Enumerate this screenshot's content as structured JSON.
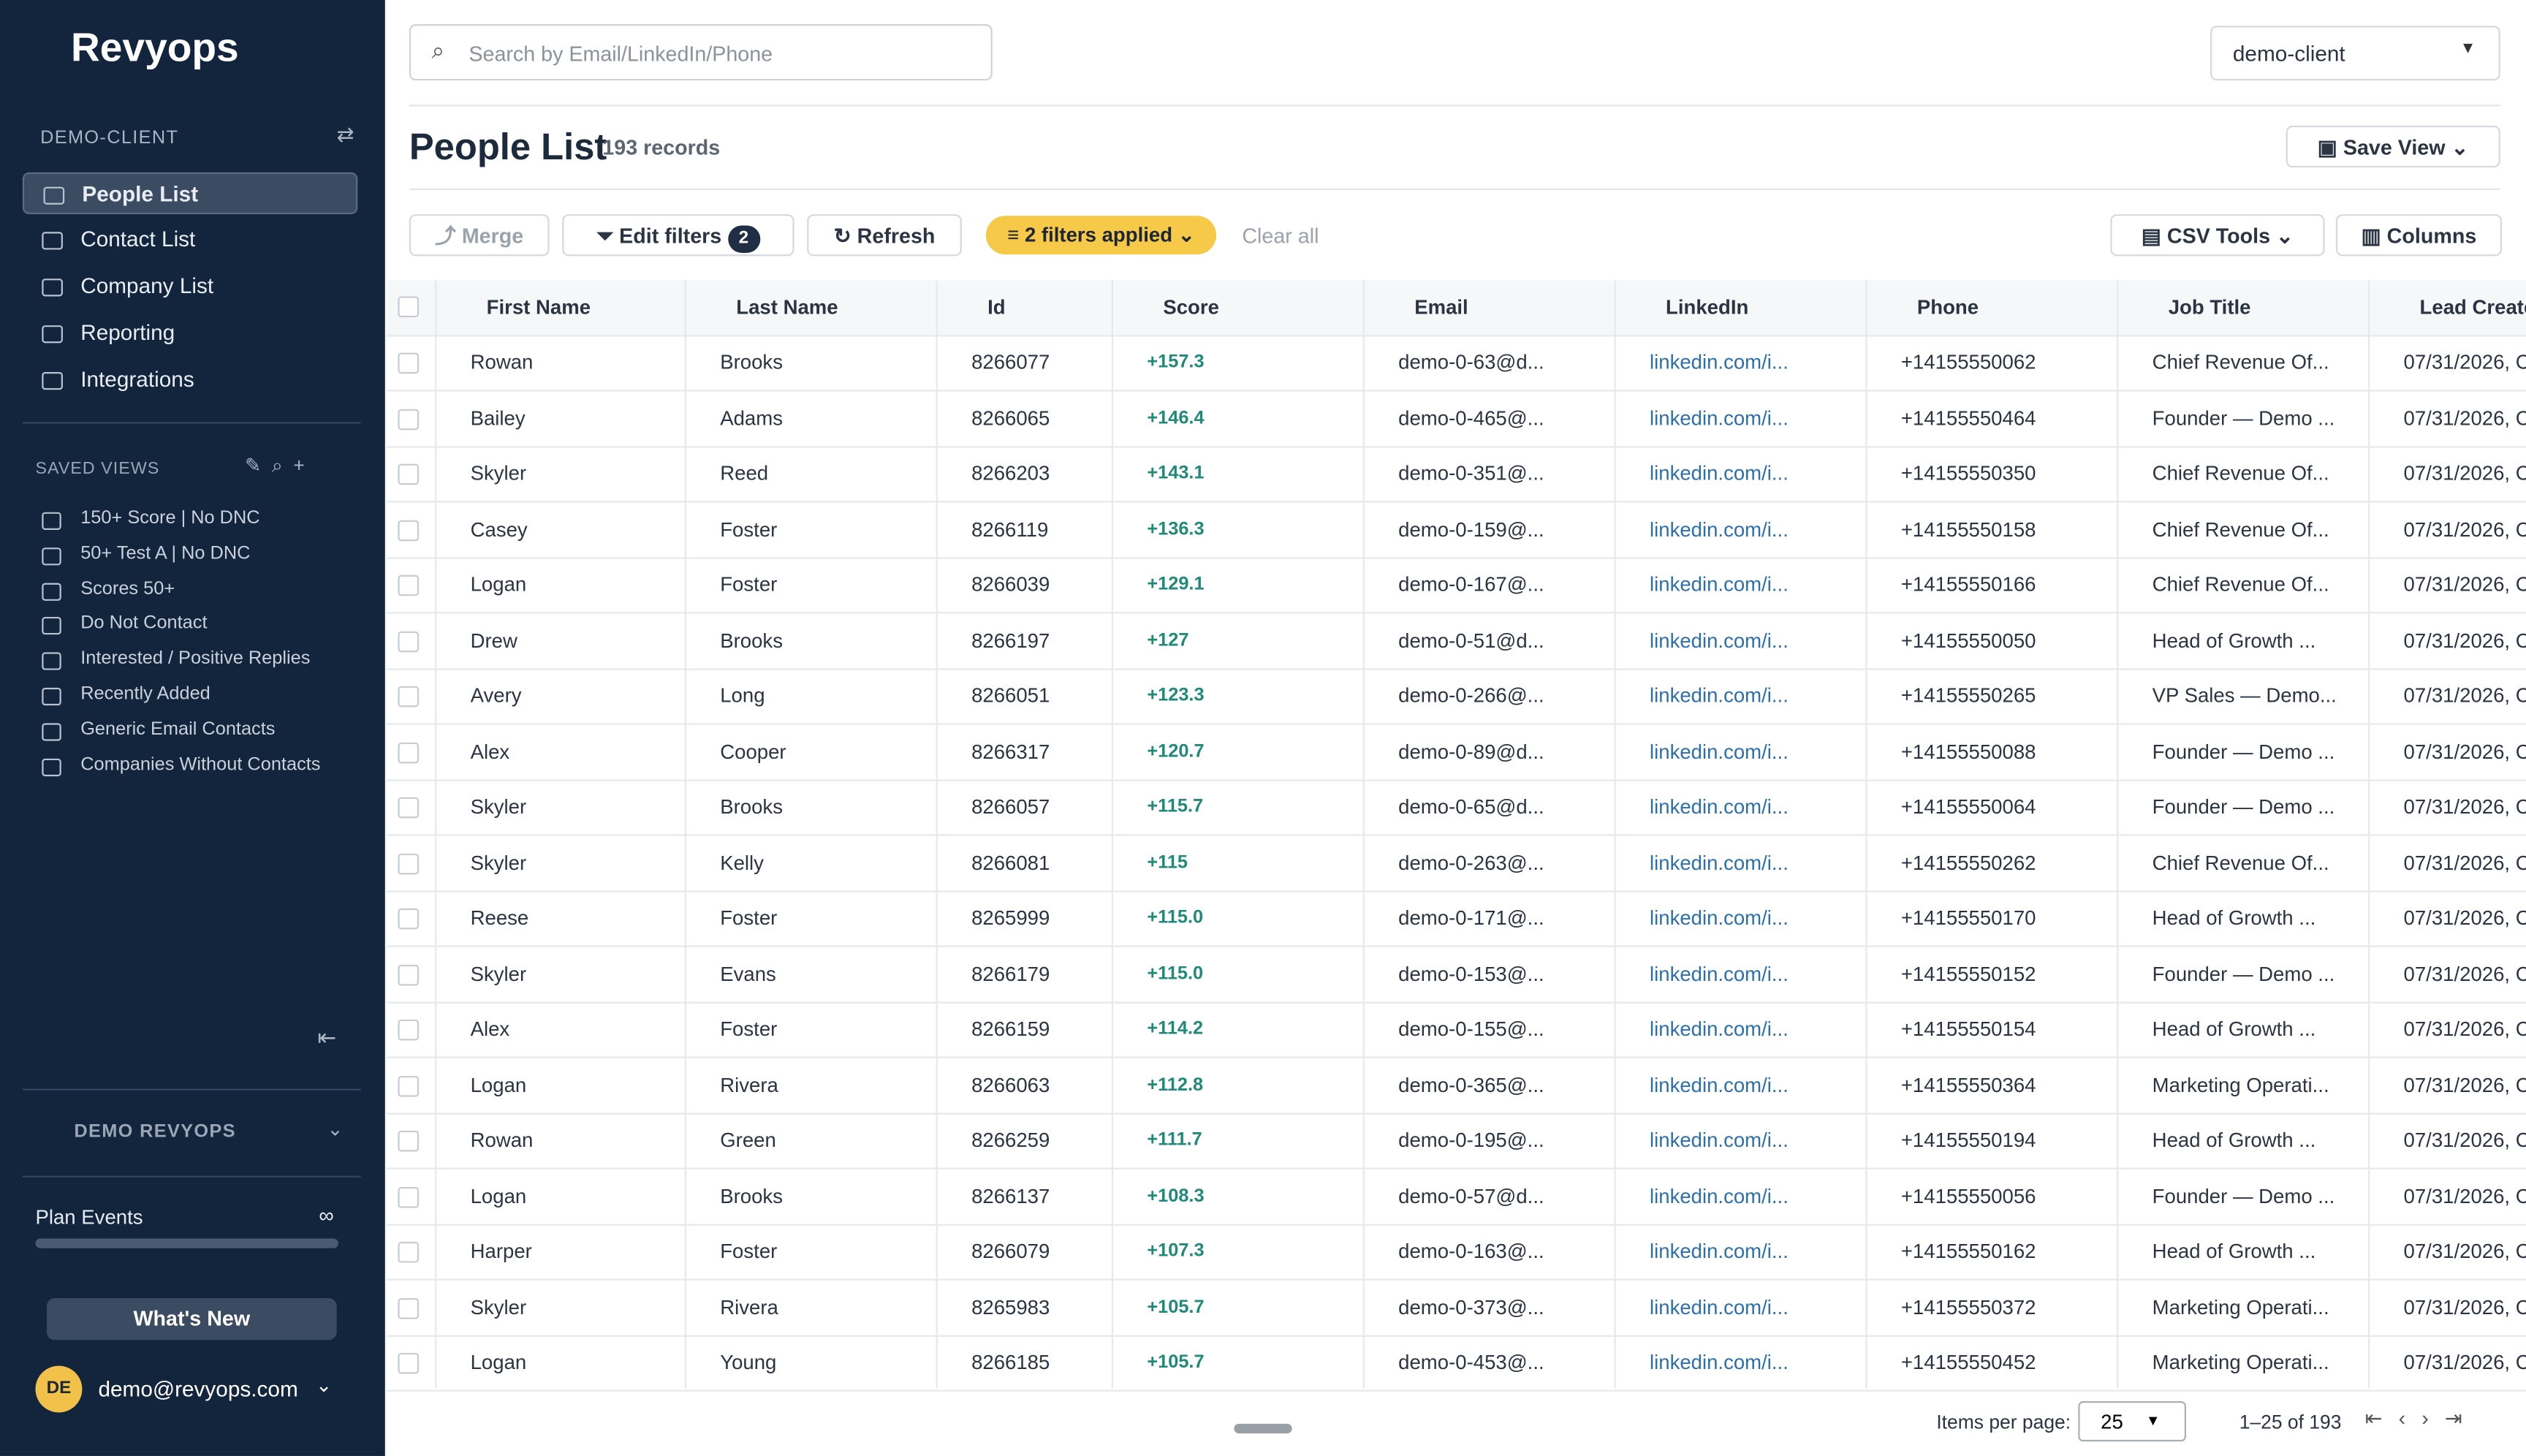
{
  "sidebar": {
    "logo": "Revyops",
    "workspace": "DEMO-CLIENT",
    "nav": [
      "People List",
      "Contact List",
      "Company List",
      "Reporting",
      "Integrations"
    ],
    "saved_views_title": "SAVED VIEWS",
    "saved_views": [
      "150+ Score | No DNC",
      "50+ Test A | No DNC",
      "Scores 50+",
      "Do Not Contact",
      "Interested / Positive Replies",
      "Recently Added",
      "Generic Email Contacts",
      "Companies Without Contacts"
    ],
    "org": "DEMO REVYOPS",
    "plan": "Plan Events",
    "plan_value": "∞",
    "whats_new": "What's New",
    "user_initials": "DE",
    "user_email": "demo@revyops.com"
  },
  "header": {
    "search_placeholder": "Search by Email/LinkedIn/Phone",
    "client": "demo-client",
    "title": "People List",
    "records": "193 records",
    "save_view": "Save View"
  },
  "toolbar": {
    "merge": "Merge",
    "edit_filters": "Edit filters",
    "filter_count": "2",
    "refresh": "Refresh",
    "filters_applied": "2 filters applied",
    "clear_all": "Clear all",
    "csv_tools": "CSV Tools",
    "columns": "Columns"
  },
  "table": {
    "columns": [
      "First Name",
      "Last Name",
      "Id",
      "Score",
      "Email",
      "LinkedIn",
      "Phone",
      "Job Title",
      "Lead Create"
    ],
    "rows": [
      [
        "Rowan",
        "Brooks",
        "8266077",
        "+157.3",
        "demo-0-63@d...",
        "linkedin.com/i...",
        "+14155550062",
        "Chief Revenue Of...",
        "07/31/2026, C"
      ],
      [
        "Bailey",
        "Adams",
        "8266065",
        "+146.4",
        "demo-0-465@...",
        "linkedin.com/i...",
        "+14155550464",
        "Founder — Demo ...",
        "07/31/2026, C"
      ],
      [
        "Skyler",
        "Reed",
        "8266203",
        "+143.1",
        "demo-0-351@...",
        "linkedin.com/i...",
        "+14155550350",
        "Chief Revenue Of...",
        "07/31/2026, C"
      ],
      [
        "Casey",
        "Foster",
        "8266119",
        "+136.3",
        "demo-0-159@...",
        "linkedin.com/i...",
        "+14155550158",
        "Chief Revenue Of...",
        "07/31/2026, C"
      ],
      [
        "Logan",
        "Foster",
        "8266039",
        "+129.1",
        "demo-0-167@...",
        "linkedin.com/i...",
        "+14155550166",
        "Chief Revenue Of...",
        "07/31/2026, C"
      ],
      [
        "Drew",
        "Brooks",
        "8266197",
        "+127",
        "demo-0-51@d...",
        "linkedin.com/i...",
        "+14155550050",
        "Head of Growth ...",
        "07/31/2026, C"
      ],
      [
        "Avery",
        "Long",
        "8266051",
        "+123.3",
        "demo-0-266@...",
        "linkedin.com/i...",
        "+14155550265",
        "VP Sales — Demo...",
        "07/31/2026, C"
      ],
      [
        "Alex",
        "Cooper",
        "8266317",
        "+120.7",
        "demo-0-89@d...",
        "linkedin.com/i...",
        "+14155550088",
        "Founder — Demo ...",
        "07/31/2026, C"
      ],
      [
        "Skyler",
        "Brooks",
        "8266057",
        "+115.7",
        "demo-0-65@d...",
        "linkedin.com/i...",
        "+14155550064",
        "Founder — Demo ...",
        "07/31/2026, C"
      ],
      [
        "Skyler",
        "Kelly",
        "8266081",
        "+115",
        "demo-0-263@...",
        "linkedin.com/i...",
        "+14155550262",
        "Chief Revenue Of...",
        "07/31/2026, C"
      ],
      [
        "Reese",
        "Foster",
        "8265999",
        "+115.0",
        "demo-0-171@...",
        "linkedin.com/i...",
        "+14155550170",
        "Head of Growth ...",
        "07/31/2026, C"
      ],
      [
        "Skyler",
        "Evans",
        "8266179",
        "+115.0",
        "demo-0-153@...",
        "linkedin.com/i...",
        "+14155550152",
        "Founder — Demo ...",
        "07/31/2026, C"
      ],
      [
        "Alex",
        "Foster",
        "8266159",
        "+114.2",
        "demo-0-155@...",
        "linkedin.com/i...",
        "+14155550154",
        "Head of Growth ...",
        "07/31/2026, C"
      ],
      [
        "Logan",
        "Rivera",
        "8266063",
        "+112.8",
        "demo-0-365@...",
        "linkedin.com/i...",
        "+14155550364",
        "Marketing Operati...",
        "07/31/2026, C"
      ],
      [
        "Rowan",
        "Green",
        "8266259",
        "+111.7",
        "demo-0-195@...",
        "linkedin.com/i...",
        "+14155550194",
        "Head of Growth ...",
        "07/31/2026, C"
      ],
      [
        "Logan",
        "Brooks",
        "8266137",
        "+108.3",
        "demo-0-57@d...",
        "linkedin.com/i...",
        "+14155550056",
        "Founder — Demo ...",
        "07/31/2026, C"
      ],
      [
        "Harper",
        "Foster",
        "8266079",
        "+107.3",
        "demo-0-163@...",
        "linkedin.com/i...",
        "+14155550162",
        "Head of Growth ...",
        "07/31/2026, C"
      ],
      [
        "Skyler",
        "Rivera",
        "8265983",
        "+105.7",
        "demo-0-373@...",
        "linkedin.com/i...",
        "+14155550372",
        "Marketing Operati...",
        "07/31/2026, C"
      ],
      [
        "Logan",
        "Young",
        "8266185",
        "+105.7",
        "demo-0-453@...",
        "linkedin.com/i...",
        "+14155550452",
        "Marketing Operati...",
        "07/31/2026, C"
      ]
    ]
  },
  "footer": {
    "items_per_page_label": "Items per page:",
    "items_per_page": "25",
    "range": "1–25 of 193"
  }
}
